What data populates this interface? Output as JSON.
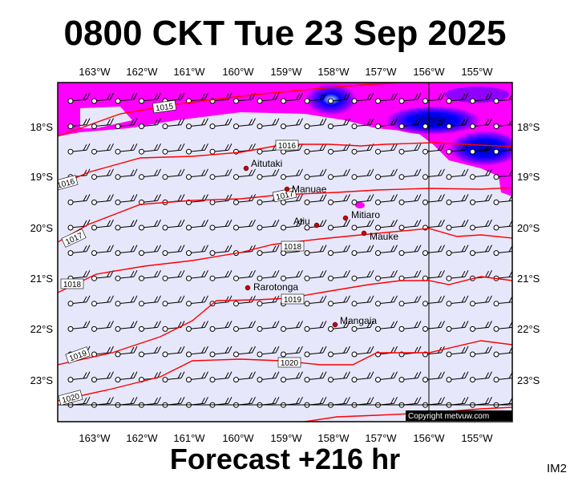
{
  "title": "0800 CKT Tue 23 Sep 2025",
  "subtitle": "Forecast +216 hr",
  "map_code": "IM2",
  "copyright": "Copyright metvuw.com",
  "lon_labels": [
    "163°W",
    "162°W",
    "161°W",
    "160°W",
    "159°W",
    "158°W",
    "157°W",
    "156°W",
    "155°W"
  ],
  "lat_labels": [
    "18°S",
    "19°S",
    "20°S",
    "21°S",
    "22°S",
    "23°S"
  ],
  "isobar_labels": [
    "1015",
    "1016",
    "1016",
    "1017",
    "1017",
    "1018",
    "1018",
    "1019",
    "1019",
    "1020",
    "1020"
  ],
  "places": [
    "Aitutaki",
    "Manuae",
    "Atiu",
    "Mitiaro",
    "Mauke",
    "Rarotonga",
    "Mangaia"
  ],
  "colors": {
    "background_sea": "#e7e7fb",
    "magenta": "#ff00ff",
    "blue": "#0000ff",
    "isobar": "#ff0000",
    "place_dot": "#cc0000"
  }
}
